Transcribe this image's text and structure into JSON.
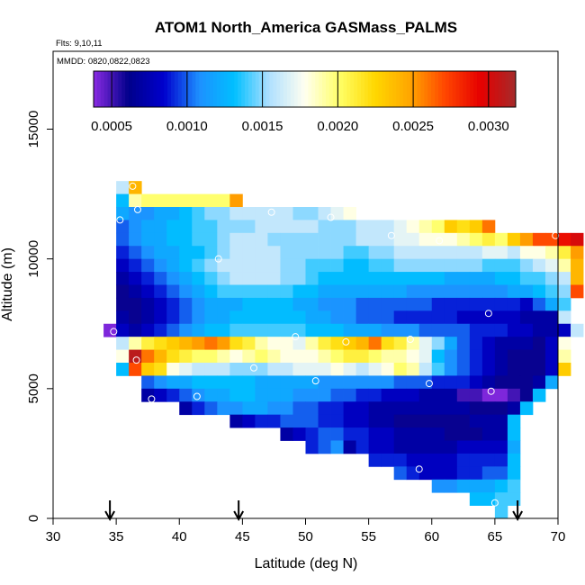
{
  "chart_data": {
    "type": "heatmap",
    "title": "ATOM1 North_America GASMass_PALMS",
    "flights_label": "Flts: 9,10,11",
    "dates_label": "MMDD: 0820,0822,0823",
    "xlabel": "Latitude (deg N)",
    "ylabel": "Altitude (m)",
    "xlim": [
      30,
      70
    ],
    "ylim": [
      0,
      18000
    ],
    "xticks": [
      30,
      35,
      40,
      45,
      50,
      55,
      60,
      65,
      70
    ],
    "xtick_labels": [
      "30",
      "35",
      "40",
      "45",
      "50",
      "55",
      "60",
      "65",
      "70"
    ],
    "yticks": [
      0,
      5000,
      10000,
      15000
    ],
    "ytick_labels": [
      "0",
      "5000",
      "10000",
      "15000"
    ],
    "colorbar": {
      "range": [
        0.00038,
        0.00318
      ],
      "ticks": [
        0.0005,
        0.001,
        0.0015,
        0.002,
        0.0025,
        0.003
      ],
      "tick_labels": [
        "0.0005",
        "0.0010",
        "0.0015",
        "0.0020",
        "0.0025",
        "0.0030"
      ],
      "colors": [
        "#8a2be2",
        "#00008b",
        "#0000cd",
        "#1e90ff",
        "#00bfff",
        "#b0e0ff",
        "#fffff0",
        "#ffff66",
        "#ffd700",
        "#ffa500",
        "#ff4500",
        "#e60000",
        "#a52a2a"
      ]
    },
    "cell_size": {
      "lat_deg": 1,
      "alt_m": 500
    },
    "rows": [
      {
        "alt": 12500,
        "start": 35,
        "values": [
          0.0016,
          0.0024
        ]
      },
      {
        "alt": 12000,
        "start": 35,
        "values": [
          0.0013,
          0.0019,
          0.002,
          0.002,
          0.002,
          0.002,
          0.002,
          0.002,
          0.002,
          0.0025
        ]
      },
      {
        "alt": 11500,
        "start": 35,
        "values": [
          0.0012,
          0.0011,
          0.0011,
          0.0012,
          0.0012,
          0.0013,
          0.0014,
          0.0015,
          0.0015,
          0.0016,
          0.0016,
          0.0016,
          0.0016,
          0.0016,
          0.0015,
          0.0015,
          0.0016,
          0.0017,
          0.0018
        ]
      },
      {
        "alt": 11000,
        "start": 35,
        "values": [
          0.001,
          0.0011,
          0.0012,
          0.0012,
          0.0013,
          0.0013,
          0.0014,
          0.0014,
          0.0015,
          0.0015,
          0.0015,
          0.0016,
          0.0016,
          0.0016,
          0.0016,
          0.0016,
          0.0015,
          0.0015,
          0.0015,
          0.0016,
          0.0016,
          0.0016,
          0.0017,
          0.0018,
          0.0019,
          0.002,
          0.0023,
          0.0022,
          0.0023,
          0.0026
        ]
      },
      {
        "alt": 10500,
        "start": 35,
        "values": [
          0.001,
          0.0011,
          0.0012,
          0.0012,
          0.0013,
          0.0013,
          0.0014,
          0.0014,
          0.0015,
          0.0016,
          0.0016,
          0.0016,
          0.0015,
          0.0015,
          0.0015,
          0.0015,
          0.0015,
          0.0015,
          0.0015,
          0.0016,
          0.0016,
          0.0016,
          0.0017,
          0.0017,
          0.0018,
          0.0018,
          0.0018,
          0.0019,
          0.002,
          0.0021,
          0.002,
          0.0023,
          0.0025,
          0.0027,
          0.0027,
          0.0029,
          0.003
        ]
      },
      {
        "alt": 10000,
        "start": 35,
        "values": [
          0.0009,
          0.001,
          0.0011,
          0.0012,
          0.0012,
          0.0013,
          0.0013,
          0.0014,
          0.0015,
          0.0016,
          0.0016,
          0.0016,
          0.0016,
          0.0015,
          0.0015,
          0.0015,
          0.0015,
          0.0015,
          0.0014,
          0.0014,
          0.0015,
          0.0015,
          0.0016,
          0.0016,
          0.0016,
          0.0016,
          0.0016,
          0.0016,
          0.0016,
          0.0017,
          0.0017,
          0.0016,
          0.0018,
          0.0018,
          0.0019,
          0.0021,
          0.0025
        ]
      },
      {
        "alt": 9500,
        "start": 35,
        "values": [
          0.0008,
          0.0009,
          0.001,
          0.0011,
          0.0012,
          0.0013,
          0.0014,
          0.0015,
          0.0016,
          0.0016,
          0.0016,
          0.0016,
          0.0016,
          0.0015,
          0.0015,
          0.0014,
          0.0014,
          0.0014,
          0.0013,
          0.0013,
          0.0014,
          0.0014,
          0.0015,
          0.0015,
          0.0015,
          0.0015,
          0.0015,
          0.0015,
          0.0015,
          0.0014,
          0.0014,
          0.0014,
          0.0015,
          0.0016,
          0.0017,
          0.0019,
          0.0024
        ]
      },
      {
        "alt": 9000,
        "start": 35,
        "values": [
          0.0007,
          0.0008,
          0.0009,
          0.001,
          0.0011,
          0.0012,
          0.0013,
          0.0014,
          0.0015,
          0.0016,
          0.0016,
          0.0016,
          0.0016,
          0.0015,
          0.0015,
          0.0014,
          0.0013,
          0.0013,
          0.0013,
          0.0013,
          0.0013,
          0.0013,
          0.0013,
          0.0013,
          0.0013,
          0.0013,
          0.0012,
          0.0012,
          0.0012,
          0.0012,
          0.0013,
          0.0013,
          0.0014,
          0.0014,
          0.0015,
          0.0016,
          0.0024
        ]
      },
      {
        "alt": 8500,
        "start": 35,
        "values": [
          0.0006,
          0.0007,
          0.0008,
          0.0009,
          0.001,
          0.0011,
          0.0012,
          0.0013,
          0.0014,
          0.0014,
          0.0014,
          0.0014,
          0.0014,
          0.0014,
          0.0013,
          0.0013,
          0.0012,
          0.0012,
          0.0012,
          0.0012,
          0.0012,
          0.0012,
          0.0012,
          0.0011,
          0.0011,
          0.0011,
          0.0011,
          0.0011,
          0.0011,
          0.0011,
          0.0011,
          0.0012,
          0.0012,
          0.0013,
          0.0014,
          0.0015,
          0.0027
        ]
      },
      {
        "alt": 8000,
        "start": 35,
        "values": [
          0.0006,
          0.0006,
          0.0007,
          0.0008,
          0.0009,
          0.001,
          0.0011,
          0.0012,
          0.0012,
          0.0012,
          0.0013,
          0.0013,
          0.0013,
          0.0013,
          0.0012,
          0.0012,
          0.0011,
          0.0011,
          0.0011,
          0.001,
          0.001,
          0.001,
          0.001,
          0.001,
          0.001,
          0.0009,
          0.0009,
          0.0009,
          0.0009,
          0.0009,
          0.0009,
          0.0009,
          0.0008,
          0.001,
          0.0012,
          0.0014
        ]
      },
      {
        "alt": 7500,
        "start": 35,
        "values": [
          0.0007,
          0.0006,
          0.0007,
          0.0008,
          0.0009,
          0.001,
          0.0011,
          0.0012,
          0.0012,
          0.0013,
          0.0013,
          0.0013,
          0.0013,
          0.0013,
          0.0013,
          0.0012,
          0.0012,
          0.0011,
          0.0011,
          0.001,
          0.001,
          0.001,
          0.0009,
          0.0009,
          0.0009,
          0.0009,
          0.0009,
          0.0008,
          0.0008,
          0.0008,
          0.0008,
          0.0008,
          0.0007,
          0.0007,
          0.0007,
          0.0016
        ]
      },
      {
        "alt": 7000,
        "start": 34,
        "values": [
          0.0004,
          0.0008,
          0.0007,
          0.0008,
          0.0009,
          0.001,
          0.0011,
          0.0012,
          0.0013,
          0.0013,
          0.0014,
          0.0014,
          0.0014,
          0.0014,
          0.0014,
          0.0014,
          0.0013,
          0.0013,
          0.0013,
          0.0012,
          0.0012,
          0.0012,
          0.0011,
          0.0011,
          0.0011,
          0.001,
          0.001,
          0.001,
          0.001,
          0.0009,
          0.0009,
          0.0009,
          0.0008,
          0.0008,
          0.0007,
          0.0007,
          0.0008,
          0.0016
        ]
      },
      {
        "alt": 6500,
        "start": 35,
        "values": [
          0.0016,
          0.0019,
          0.0021,
          0.0022,
          0.0023,
          0.0024,
          0.0025,
          0.0026,
          0.0025,
          0.0022,
          0.0021,
          0.0019,
          0.0018,
          0.0018,
          0.0017,
          0.0019,
          0.0021,
          0.0022,
          0.0023,
          0.0024,
          0.0026,
          0.0022,
          0.0021,
          0.0019,
          0.0017,
          0.0015,
          0.0012,
          0.001,
          0.0009,
          0.0008,
          0.0007,
          0.0007,
          0.0007,
          0.0006,
          0.0008,
          0.0018
        ]
      },
      {
        "alt": 6000,
        "start": 35,
        "values": [
          0.0018,
          0.0031,
          0.0026,
          0.0024,
          0.0022,
          0.0021,
          0.002,
          0.002,
          0.0019,
          0.0018,
          0.0019,
          0.002,
          0.0019,
          0.0018,
          0.0018,
          0.0018,
          0.0019,
          0.002,
          0.0021,
          0.0021,
          0.002,
          0.0019,
          0.0019,
          0.0018,
          0.0017,
          0.0013,
          0.0011,
          0.001,
          0.0009,
          0.0008,
          0.0007,
          0.0006,
          0.0006,
          0.0006,
          0.0008,
          0.0019
        ]
      },
      {
        "alt": 5500,
        "start": 35,
        "values": [
          0.0013,
          0.0027,
          0.0023,
          0.0022,
          0.0018,
          0.0017,
          0.0016,
          0.0016,
          0.0016,
          0.0015,
          0.0015,
          0.0015,
          0.0016,
          0.0016,
          0.0017,
          0.0017,
          0.0017,
          0.0018,
          0.0017,
          0.0016,
          0.0017,
          0.0018,
          0.002,
          0.0019,
          0.0016,
          0.0014,
          0.0011,
          0.001,
          0.0009,
          0.0008,
          0.0007,
          0.0006,
          0.0006,
          0.0006,
          0.0008,
          0.0023
        ]
      },
      {
        "alt": 5000,
        "start": 37,
        "values": [
          0.001,
          0.0011,
          0.0012,
          0.0012,
          0.0013,
          0.0013,
          0.0013,
          0.0013,
          0.0013,
          0.0012,
          0.0012,
          0.0012,
          0.0012,
          0.0012,
          0.0011,
          0.0011,
          0.0011,
          0.0011,
          0.0011,
          0.0011,
          0.001,
          0.001,
          0.001,
          0.0009,
          0.0009,
          0.0009,
          0.0008,
          0.0007,
          0.0006,
          0.0006,
          0.0006,
          0.0007,
          0.0012
        ]
      },
      {
        "alt": 4500,
        "start": 37,
        "values": [
          0.0007,
          0.0008,
          0.0009,
          0.001,
          0.0011,
          0.0012,
          0.0012,
          0.0013,
          0.0013,
          0.0012,
          0.0012,
          0.0012,
          0.0011,
          0.0011,
          0.0011,
          0.001,
          0.001,
          0.0009,
          0.0009,
          0.0008,
          0.0008,
          0.0008,
          0.0007,
          0.0007,
          0.0007,
          0.0005,
          0.0005,
          0.0004,
          0.0004,
          0.0005,
          0.0006,
          0.0013
        ]
      },
      {
        "alt": 4000,
        "start": 40,
        "values": [
          0.0007,
          0.0009,
          0.001,
          0.0011,
          0.0011,
          0.0012,
          0.0012,
          0.0011,
          0.0011,
          0.001,
          0.001,
          0.0009,
          0.0009,
          0.0008,
          0.0008,
          0.0007,
          0.0007,
          0.0007,
          0.0007,
          0.0007,
          0.0007,
          0.0007,
          0.0007,
          0.0006,
          0.0006,
          0.0006,
          0.0007,
          0.0013
        ]
      },
      {
        "alt": 3500,
        "start": 44,
        "values": [
          0.0007,
          0.0008,
          0.0009,
          0.0009,
          0.001,
          0.001,
          0.001,
          0.0009,
          0.0009,
          0.0008,
          0.0008,
          0.0007,
          0.0007,
          0.0006,
          0.0006,
          0.0006,
          0.0006,
          0.0006,
          0.0006,
          0.0007,
          0.0007,
          0.0007,
          0.0013
        ]
      },
      {
        "alt": 3000,
        "start": 48,
        "values": [
          0.0007,
          0.0008,
          0.0009,
          0.001,
          0.001,
          0.0009,
          0.0009,
          0.0008,
          0.0008,
          0.0007,
          0.0007,
          0.0007,
          0.0007,
          0.0006,
          0.0006,
          0.0006,
          0.0007,
          0.0007,
          0.0013
        ]
      },
      {
        "alt": 2500,
        "start": 50,
        "values": [
          0.0009,
          0.001,
          0.0011,
          0.0007,
          0.0009,
          0.0008,
          0.0008,
          0.0007,
          0.0007,
          0.0007,
          0.0007,
          0.0007,
          0.0008,
          0.0008,
          0.0008,
          0.0008,
          0.0012
        ]
      },
      {
        "alt": 2000,
        "start": 55,
        "values": [
          0.0009,
          0.0009,
          0.0009,
          0.0008,
          0.0008,
          0.0008,
          0.0008,
          0.0009,
          0.0009,
          0.0009,
          0.0009,
          0.0013
        ]
      },
      {
        "alt": 1500,
        "start": 57,
        "values": [
          0.001,
          0.0009,
          0.0008,
          0.0008,
          0.0008,
          0.0009,
          0.0009,
          0.001,
          0.001,
          0.0013
        ]
      },
      {
        "alt": 1000,
        "start": 60,
        "values": [
          0.0011,
          0.0011,
          0.0012,
          0.0012,
          0.0012,
          0.0013,
          0.0014
        ]
      },
      {
        "alt": 500,
        "start": 63,
        "values": [
          0.0013,
          0.0013,
          0.0014,
          0.0014
        ]
      },
      {
        "alt": 0,
        "start": 65,
        "values": [
          0.0014
        ]
      }
    ],
    "points": [
      {
        "lat": 36.3,
        "alt": 12800
      },
      {
        "lat": 35.3,
        "alt": 11500
      },
      {
        "lat": 36.7,
        "alt": 11900
      },
      {
        "lat": 47.3,
        "alt": 11800
      },
      {
        "lat": 52.0,
        "alt": 11600
      },
      {
        "lat": 56.8,
        "alt": 10900
      },
      {
        "lat": 60.6,
        "alt": 10700
      },
      {
        "lat": 69.8,
        "alt": 10900
      },
      {
        "lat": 43.1,
        "alt": 10000
      },
      {
        "lat": 64.5,
        "alt": 7900
      },
      {
        "lat": 34.8,
        "alt": 7200
      },
      {
        "lat": 49.2,
        "alt": 7000
      },
      {
        "lat": 53.2,
        "alt": 6800
      },
      {
        "lat": 58.3,
        "alt": 6900
      },
      {
        "lat": 36.6,
        "alt": 6100
      },
      {
        "lat": 45.9,
        "alt": 5800
      },
      {
        "lat": 50.8,
        "alt": 5300
      },
      {
        "lat": 59.8,
        "alt": 5200
      },
      {
        "lat": 64.7,
        "alt": 4900
      },
      {
        "lat": 37.8,
        "alt": 4600
      },
      {
        "lat": 41.4,
        "alt": 4700
      },
      {
        "lat": 59.0,
        "alt": 1900
      },
      {
        "lat": 65.0,
        "alt": 600
      }
    ],
    "arrows_lat": [
      34.5,
      44.7,
      66.8
    ]
  }
}
